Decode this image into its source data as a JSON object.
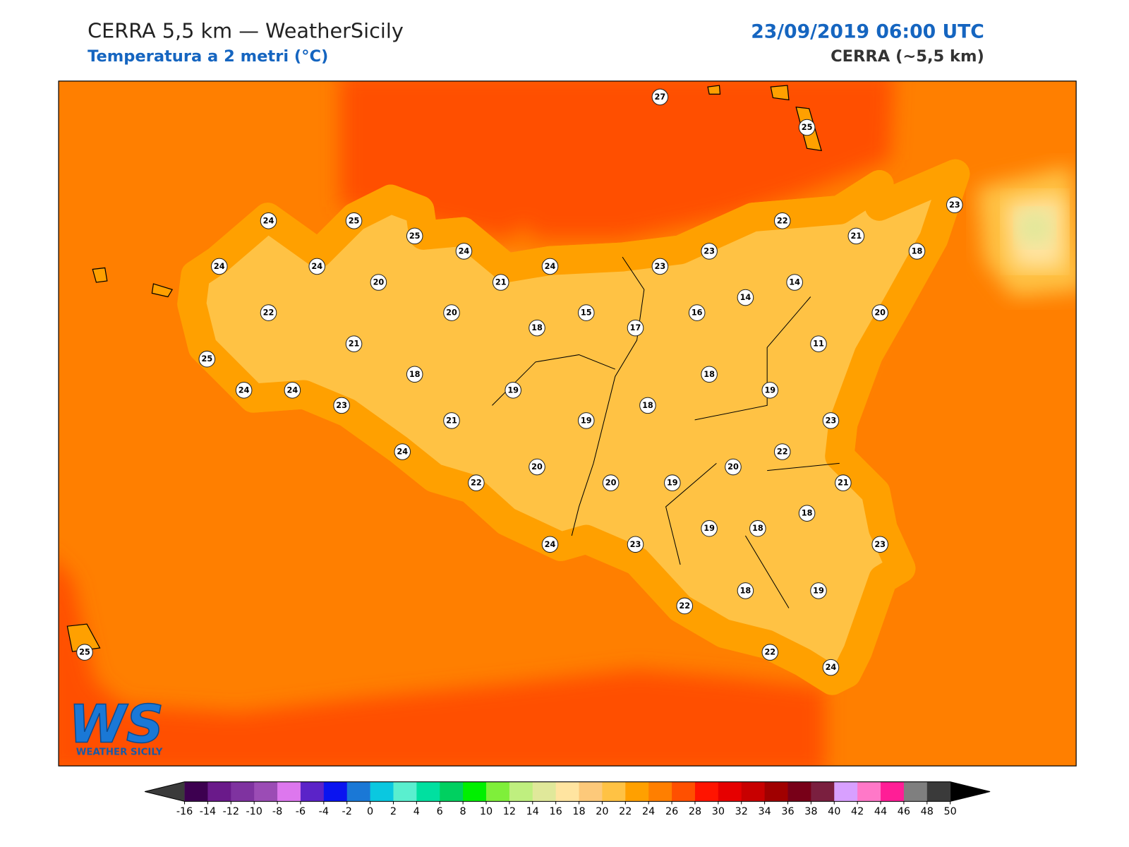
{
  "header": {
    "title": "CERRA 5,5 km — WeatherSicily",
    "subtitle": "Temperatura a 2 metri (°C)",
    "datetime": "23/09/2019 06:00 UTC",
    "model": "CERRA (~5,5 km)"
  },
  "stations": [
    27,
    25,
    24,
    25,
    23,
    22,
    25,
    21,
    24,
    18,
    24,
    24,
    24,
    23,
    23,
    20,
    21,
    14,
    14,
    22,
    20,
    15,
    16,
    20,
    18,
    17,
    21,
    11,
    25,
    18,
    18,
    24,
    24,
    19,
    19,
    23,
    18,
    21,
    19,
    23,
    24,
    22,
    20,
    20,
    22,
    20,
    19,
    21,
    18,
    19,
    18,
    24,
    23,
    23,
    18,
    19,
    22,
    25,
    22,
    24
  ],
  "colorbar": {
    "ticks": [
      -16,
      -14,
      -12,
      -10,
      -8,
      -6,
      -4,
      -2,
      0,
      2,
      4,
      6,
      8,
      10,
      12,
      14,
      16,
      18,
      20,
      22,
      24,
      26,
      28,
      30,
      32,
      34,
      36,
      38,
      40,
      42,
      44,
      46,
      48,
      50
    ],
    "colors": [
      "#3d0050",
      "#6a1a8a",
      "#7f33a0",
      "#9b4cb5",
      "#dd77ee",
      "#5b23c8",
      "#0a14f0",
      "#1a78d6",
      "#0ac8e0",
      "#5aefcf",
      "#00e0a0",
      "#00d060",
      "#00f000",
      "#7fef3a",
      "#bfef7f",
      "#e0e89a",
      "#ffe4a0",
      "#fdc97a",
      "#ffc244",
      "#ffa000",
      "#ff7f00",
      "#ff5000",
      "#ff1400",
      "#e60000",
      "#c80000",
      "#a00000",
      "#780018",
      "#7a1f3f",
      "#d8a0ff",
      "#ff78c8",
      "#ff1e96",
      "#7f7f7f",
      "#3a3a3a"
    ],
    "under_color": "#3a3a3a",
    "over_color": "#000000"
  },
  "logo": {
    "mark": "WS",
    "name": "WEATHER SICILY"
  }
}
